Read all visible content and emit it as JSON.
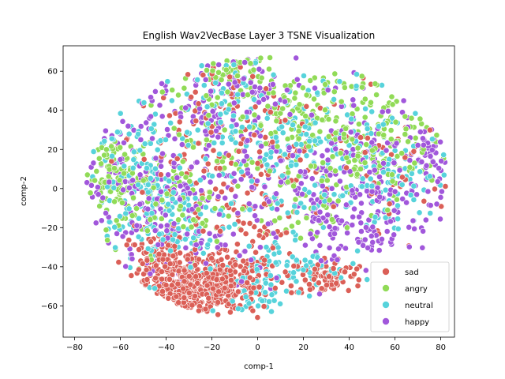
{
  "chart_data": {
    "type": "scatter",
    "title": "English Wav2VecBase Layer 3 TSNE Visualization",
    "xlabel": "comp-1",
    "ylabel": "comp-2",
    "xlim": [
      -85,
      86
    ],
    "ylim": [
      -76,
      73
    ],
    "xticks": [
      -80,
      -60,
      -40,
      -20,
      0,
      20,
      40,
      60,
      80
    ],
    "yticks": [
      -60,
      -40,
      -20,
      0,
      20,
      40,
      60
    ],
    "grid": false,
    "legend_position": "lower-right",
    "series": [
      {
        "name": "sad",
        "color": "#db5f57",
        "clusters": [
          {
            "cx": -30,
            "cy": -52,
            "sx": 11,
            "sy": 7,
            "n": 260
          },
          {
            "cx": -12,
            "cy": -48,
            "sx": 10,
            "sy": 8,
            "n": 170
          },
          {
            "cx": -42,
            "cy": -38,
            "sx": 9,
            "sy": 8,
            "n": 130
          },
          {
            "cx": 30,
            "cy": -45,
            "sx": 9,
            "sy": 5,
            "n": 90
          },
          {
            "cx": -25,
            "cy": 15,
            "sx": 20,
            "sy": 18,
            "n": 110
          },
          {
            "cx": 0,
            "cy": -20,
            "sx": 12,
            "sy": 12,
            "n": 40
          },
          {
            "cx": 25,
            "cy": 20,
            "sx": 25,
            "sy": 20,
            "n": 45
          },
          {
            "cx": 60,
            "cy": 10,
            "sx": 12,
            "sy": 15,
            "n": 30
          },
          {
            "cx": -15,
            "cy": 55,
            "sx": 8,
            "sy": 8,
            "n": 20
          }
        ]
      },
      {
        "name": "angry",
        "color": "#91db57",
        "clusters": [
          {
            "cx": -62,
            "cy": 5,
            "sx": 8,
            "sy": 10,
            "n": 100
          },
          {
            "cx": -10,
            "cy": 58,
            "sx": 9,
            "sy": 7,
            "n": 60
          },
          {
            "cx": 25,
            "cy": 40,
            "sx": 18,
            "sy": 12,
            "n": 120
          },
          {
            "cx": 40,
            "cy": 15,
            "sx": 20,
            "sy": 15,
            "n": 100
          },
          {
            "cx": -30,
            "cy": 20,
            "sx": 20,
            "sy": 20,
            "n": 90
          },
          {
            "cx": 60,
            "cy": 25,
            "sx": 12,
            "sy": 15,
            "n": 50
          },
          {
            "cx": 15,
            "cy": -10,
            "sx": 20,
            "sy": 12,
            "n": 50
          },
          {
            "cx": -45,
            "cy": -15,
            "sx": 12,
            "sy": 12,
            "n": 40
          }
        ]
      },
      {
        "name": "neutral",
        "color": "#57d3db",
        "clusters": [
          {
            "cx": -40,
            "cy": -15,
            "sx": 14,
            "sy": 15,
            "n": 140
          },
          {
            "cx": 15,
            "cy": -40,
            "sx": 12,
            "sy": 8,
            "n": 80
          },
          {
            "cx": 30,
            "cy": 25,
            "sx": 22,
            "sy": 18,
            "n": 140
          },
          {
            "cx": -15,
            "cy": 40,
            "sx": 15,
            "sy": 15,
            "n": 80
          },
          {
            "cx": -5,
            "cy": -55,
            "sx": 8,
            "sy": 8,
            "n": 40
          },
          {
            "cx": 55,
            "cy": 0,
            "sx": 15,
            "sy": 15,
            "n": 60
          },
          {
            "cx": -55,
            "cy": 15,
            "sx": 12,
            "sy": 15,
            "n": 60
          },
          {
            "cx": 5,
            "cy": 5,
            "sx": 15,
            "sy": 15,
            "n": 50
          }
        ]
      },
      {
        "name": "happy",
        "color": "#a157db",
        "clusters": [
          {
            "cx": -50,
            "cy": 5,
            "sx": 15,
            "sy": 20,
            "n": 150
          },
          {
            "cx": 50,
            "cy": 10,
            "sx": 18,
            "sy": 20,
            "n": 170
          },
          {
            "cx": 20,
            "cy": -5,
            "sx": 20,
            "sy": 18,
            "n": 110
          },
          {
            "cx": -15,
            "cy": 30,
            "sx": 18,
            "sy": 20,
            "n": 110
          },
          {
            "cx": 45,
            "cy": -25,
            "sx": 12,
            "sy": 8,
            "n": 60
          },
          {
            "cx": 75,
            "cy": 25,
            "sx": 6,
            "sy": 10,
            "n": 30
          },
          {
            "cx": -30,
            "cy": -25,
            "sx": 12,
            "sy": 12,
            "n": 60
          },
          {
            "cx": 0,
            "cy": 55,
            "sx": 15,
            "sy": 8,
            "n": 40
          }
        ]
      }
    ]
  }
}
